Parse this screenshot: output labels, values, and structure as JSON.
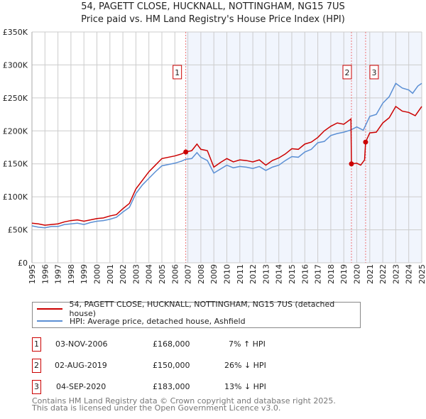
{
  "title": "54, PAGETT CLOSE, HUCKNALL, NOTTINGHAM, NG15 7US",
  "subtitle": "Price paid vs. HM Land Registry's House Price Index (HPI)",
  "chart_data": {
    "type": "line",
    "title": "54, PAGETT CLOSE, HUCKNALL, NOTTINGHAM, NG15 7US",
    "ylim": [
      0,
      350000
    ],
    "xlim": [
      1995,
      2025
    ],
    "yticks": [
      {
        "v": 0,
        "label": "£0"
      },
      {
        "v": 50000,
        "label": "£50K"
      },
      {
        "v": 100000,
        "label": "£100K"
      },
      {
        "v": 150000,
        "label": "£150K"
      },
      {
        "v": 200000,
        "label": "£200K"
      },
      {
        "v": 250000,
        "label": "£250K"
      },
      {
        "v": 300000,
        "label": "£300K"
      },
      {
        "v": 350000,
        "label": "£350K"
      }
    ],
    "xticks": [
      "1995",
      "1996",
      "1997",
      "1998",
      "1999",
      "2000",
      "2001",
      "2002",
      "2003",
      "2004",
      "2005",
      "2006",
      "2007",
      "2008",
      "2009",
      "2010",
      "2011",
      "2012",
      "2013",
      "2014",
      "2015",
      "2016",
      "2017",
      "2018",
      "2019",
      "2020",
      "2021",
      "2022",
      "2023",
      "2024",
      "2025"
    ],
    "shade_from": 2006.84,
    "series": [
      {
        "name": "54, PAGETT CLOSE, HUCKNALL, NOTTINGHAM, NG15 7US (detached house)",
        "color": "#cc0000",
        "x": [
          1995,
          1995.5,
          1996,
          1996.5,
          1997,
          1997.5,
          1998,
          1998.5,
          1999,
          1999.5,
          2000,
          2000.5,
          2001,
          2001.5,
          2002,
          2002.5,
          2003,
          2003.5,
          2004,
          2004.5,
          2005,
          2005.5,
          2006,
          2006.5,
          2006.84,
          2007.3,
          2007.7,
          2008,
          2008.5,
          2009,
          2009.5,
          2010,
          2010.5,
          2011,
          2011.5,
          2012,
          2012.5,
          2013,
          2013.5,
          2014,
          2014.5,
          2015,
          2015.5,
          2016,
          2016.5,
          2017,
          2017.5,
          2018,
          2018.5,
          2019,
          2019.55,
          2019.59,
          2020,
          2020.3,
          2020.6,
          2020.68,
          2021,
          2021.5,
          2022,
          2022.5,
          2023,
          2023.5,
          2024,
          2024.5,
          2025
        ],
        "y": [
          60000,
          59000,
          57000,
          58000,
          59000,
          62000,
          64000,
          65000,
          63000,
          65000,
          67000,
          68000,
          71000,
          73000,
          82000,
          90000,
          112000,
          125000,
          138000,
          148000,
          158000,
          160000,
          162000,
          165000,
          168000,
          170000,
          180000,
          172000,
          170000,
          145000,
          152000,
          158000,
          153000,
          156000,
          155000,
          153000,
          156000,
          148000,
          155000,
          159000,
          165000,
          173000,
          172000,
          180000,
          183000,
          190000,
          200000,
          207000,
          212000,
          210000,
          218000,
          150000,
          151000,
          148000,
          156000,
          183000,
          197000,
          198000,
          212000,
          220000,
          237000,
          230000,
          228000,
          223000,
          237000
        ]
      },
      {
        "name": "HPI: Average price, detached house, Ashfield",
        "color": "#5b8fd4",
        "x": [
          1995,
          1995.5,
          1996,
          1996.5,
          1997,
          1997.5,
          1998,
          1998.5,
          1999,
          1999.5,
          2000,
          2000.5,
          2001,
          2001.5,
          2002,
          2002.5,
          2003,
          2003.5,
          2004,
          2004.5,
          2005,
          2005.5,
          2006,
          2006.5,
          2006.84,
          2007.3,
          2007.7,
          2008,
          2008.5,
          2009,
          2009.5,
          2010,
          2010.5,
          2011,
          2011.5,
          2012,
          2012.5,
          2013,
          2013.5,
          2014,
          2014.5,
          2015,
          2015.5,
          2016,
          2016.5,
          2017,
          2017.5,
          2018,
          2018.5,
          2019,
          2019.5,
          2020,
          2020.5,
          2021,
          2021.5,
          2022,
          2022.5,
          2023,
          2023.5,
          2024,
          2024.3,
          2024.7,
          2025
        ],
        "y": [
          56000,
          54000,
          53000,
          55000,
          55000,
          58000,
          59000,
          60000,
          58000,
          61000,
          63000,
          64000,
          66000,
          69000,
          77000,
          84000,
          105000,
          118000,
          128000,
          138000,
          147000,
          149000,
          151000,
          154000,
          157000,
          158000,
          167000,
          160000,
          155000,
          136000,
          142000,
          148000,
          144000,
          146000,
          145000,
          143000,
          146000,
          140000,
          145000,
          148000,
          155000,
          161000,
          160000,
          168000,
          172000,
          182000,
          184000,
          193000,
          196000,
          198000,
          201000,
          206000,
          201000,
          222000,
          225000,
          242000,
          252000,
          272000,
          265000,
          262000,
          257000,
          268000,
          272000
        ]
      }
    ],
    "sales": [
      {
        "n": "1",
        "x": 2006.84,
        "y": 168000
      },
      {
        "n": "2",
        "x": 2019.59,
        "y": 150000
      },
      {
        "n": "3",
        "x": 2020.68,
        "y": 183000
      }
    ]
  },
  "legend": {
    "item1": "54, PAGETT CLOSE, HUCKNALL, NOTTINGHAM, NG15 7US (detached house)",
    "item2": "HPI: Average price, detached house, Ashfield",
    "color1": "#cc0000",
    "color2": "#5b8fd4"
  },
  "transactions": [
    {
      "n": "1",
      "date": "03-NOV-2006",
      "price": "£168,000",
      "hpi": "7% ↑ HPI"
    },
    {
      "n": "2",
      "date": "02-AUG-2019",
      "price": "£150,000",
      "hpi": "26% ↓ HPI"
    },
    {
      "n": "3",
      "date": "04-SEP-2020",
      "price": "£183,000",
      "hpi": "13% ↓ HPI"
    }
  ],
  "footer": {
    "line1": "Contains HM Land Registry data © Crown copyright and database right 2025.",
    "line2": "This data is licensed under the Open Government Licence v3.0."
  }
}
